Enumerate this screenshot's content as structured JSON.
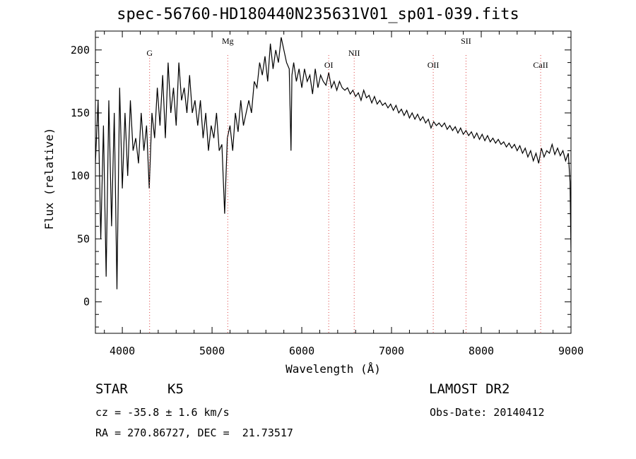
{
  "chart_data": {
    "type": "line",
    "title": "spec-56760-HD180440N235631V01_sp01-039.fits",
    "xlabel": "Wavelength (Å)",
    "ylabel": "Flux (relative)",
    "xlim": [
      3700,
      9000
    ],
    "ylim": [
      -25,
      215
    ],
    "xticks": [
      4000,
      5000,
      6000,
      7000,
      8000,
      9000
    ],
    "yticks": [
      0,
      50,
      100,
      150,
      200
    ],
    "line_color": "#000000",
    "marker_color": "#dd4444",
    "series": [
      {
        "x": [
          3700,
          3730,
          3760,
          3790,
          3820,
          3850,
          3880,
          3910,
          3940,
          3970,
          4000,
          4030,
          4060,
          4090,
          4120,
          4150,
          4180,
          4210,
          4240,
          4270,
          4300,
          4330,
          4360,
          4390,
          4420,
          4450,
          4480,
          4510,
          4540,
          4570,
          4600,
          4630,
          4660,
          4690,
          4720,
          4750,
          4780,
          4810,
          4840,
          4870,
          4900,
          4930,
          4960,
          4990,
          5020,
          5050,
          5080,
          5110,
          5140,
          5170,
          5200,
          5230,
          5260,
          5290,
          5320,
          5350,
          5380,
          5410,
          5440,
          5470,
          5500,
          5530,
          5560,
          5590,
          5620,
          5650,
          5680,
          5710,
          5740,
          5770,
          5800,
          5830,
          5860,
          5880,
          5890,
          5910,
          5940,
          5970,
          6000,
          6030,
          6060,
          6090,
          6120,
          6150,
          6180,
          6210,
          6240,
          6270,
          6300,
          6330,
          6360,
          6390,
          6420,
          6450,
          6480,
          6510,
          6540,
          6570,
          6600,
          6630,
          6660,
          6690,
          6720,
          6750,
          6780,
          6810,
          6840,
          6870,
          6900,
          6930,
          6960,
          6990,
          7020,
          7050,
          7080,
          7110,
          7140,
          7170,
          7200,
          7230,
          7260,
          7290,
          7320,
          7350,
          7380,
          7410,
          7440,
          7470,
          7500,
          7530,
          7560,
          7590,
          7620,
          7650,
          7680,
          7710,
          7740,
          7770,
          7800,
          7830,
          7860,
          7890,
          7920,
          7950,
          7980,
          8010,
          8040,
          8070,
          8100,
          8130,
          8160,
          8190,
          8220,
          8250,
          8280,
          8310,
          8340,
          8370,
          8400,
          8430,
          8460,
          8490,
          8520,
          8550,
          8580,
          8610,
          8640,
          8670,
          8700,
          8730,
          8760,
          8790,
          8820,
          8850,
          8880,
          8910,
          8940,
          8970,
          8990,
          9000
        ],
        "y": [
          110,
          160,
          50,
          140,
          20,
          160,
          60,
          150,
          10,
          170,
          90,
          150,
          100,
          160,
          120,
          130,
          110,
          150,
          120,
          140,
          90,
          150,
          130,
          170,
          140,
          180,
          130,
          190,
          150,
          170,
          140,
          190,
          160,
          170,
          150,
          180,
          150,
          160,
          140,
          160,
          130,
          150,
          120,
          140,
          130,
          150,
          120,
          125,
          70,
          130,
          140,
          120,
          150,
          135,
          160,
          140,
          150,
          160,
          150,
          175,
          170,
          190,
          180,
          195,
          175,
          205,
          185,
          200,
          190,
          210,
          200,
          190,
          185,
          120,
          180,
          190,
          175,
          185,
          170,
          185,
          175,
          180,
          165,
          185,
          170,
          180,
          175,
          172,
          182,
          170,
          175,
          168,
          175,
          170,
          168,
          170,
          165,
          168,
          163,
          166,
          160,
          168,
          162,
          164,
          158,
          163,
          157,
          160,
          156,
          158,
          154,
          157,
          152,
          156,
          150,
          153,
          148,
          152,
          146,
          150,
          145,
          149,
          144,
          147,
          142,
          145,
          138,
          143,
          140,
          142,
          139,
          142,
          137,
          140,
          136,
          139,
          134,
          138,
          133,
          136,
          132,
          135,
          130,
          134,
          129,
          133,
          128,
          132,
          127,
          130,
          126,
          129,
          125,
          127,
          123,
          126,
          122,
          125,
          120,
          124,
          118,
          122,
          115,
          120,
          112,
          118,
          110,
          122,
          115,
          120,
          118,
          125,
          117,
          122,
          116,
          120,
          112,
          118,
          95,
          40
        ]
      }
    ],
    "annotations": [
      {
        "label": "G",
        "x": 4304
      },
      {
        "label": "Mg",
        "x": 5175
      },
      {
        "label": "OI",
        "x": 6300
      },
      {
        "label": "NII",
        "x": 6584
      },
      {
        "label": "OII",
        "x": 7465
      },
      {
        "label": "SII",
        "x": 7830
      },
      {
        "label": "CaII",
        "x": 8662
      }
    ]
  },
  "info": {
    "object_type": "STAR",
    "subclass": "K5",
    "survey": "LAMOST DR2",
    "cz": "cz = -35.8 ± 1.6 km/s",
    "obs_date": "Obs-Date: 20140412",
    "coords": "RA = 270.86727, DEC =  21.73517"
  }
}
